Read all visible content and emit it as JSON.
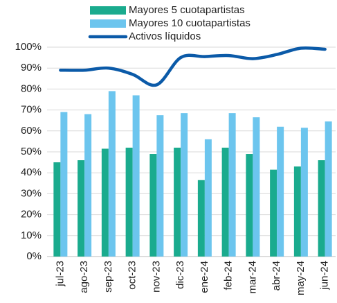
{
  "chart_data": {
    "type": "bar_line",
    "categories": [
      "jul-23",
      "ago-23",
      "sep-23",
      "oct-23",
      "nov-23",
      "dic-23",
      "ene-24",
      "feb-24",
      "mar-24",
      "abr-24",
      "may-24",
      "jun-24"
    ],
    "series": [
      {
        "name": "Mayores 5 cuotapartistas",
        "color": "#1aab8e",
        "kind": "bar",
        "values": [
          45,
          46,
          51.5,
          52,
          49,
          52,
          36.5,
          52,
          49,
          41.5,
          43,
          46
        ]
      },
      {
        "name": "Mayores 10 cuotapartistas",
        "color": "#6cc5ee",
        "kind": "bar",
        "values": [
          69,
          68,
          79,
          77,
          67.5,
          68.5,
          56,
          68.5,
          66.5,
          62,
          61.5,
          64.5
        ]
      },
      {
        "name": "Activos líquidos",
        "color": "#0b5aa8",
        "kind": "line",
        "values": [
          89,
          89,
          90,
          87,
          82,
          95,
          95.5,
          96,
          94.5,
          96.5,
          99.5,
          99
        ]
      }
    ],
    "ylim": [
      0,
      100
    ],
    "yticks": [
      {
        "value": 0,
        "label": "0%"
      },
      {
        "value": 10,
        "label": "10%"
      },
      {
        "value": 20,
        "label": "20%"
      },
      {
        "value": 30,
        "label": "30%"
      },
      {
        "value": 40,
        "label": "40%"
      },
      {
        "value": 50,
        "label": "50%"
      },
      {
        "value": 60,
        "label": "60%"
      },
      {
        "value": 70,
        "label": "70%"
      },
      {
        "value": 80,
        "label": "80%"
      },
      {
        "value": 90,
        "label": "90%"
      },
      {
        "value": 100,
        "label": "100%"
      }
    ],
    "grid": true
  }
}
